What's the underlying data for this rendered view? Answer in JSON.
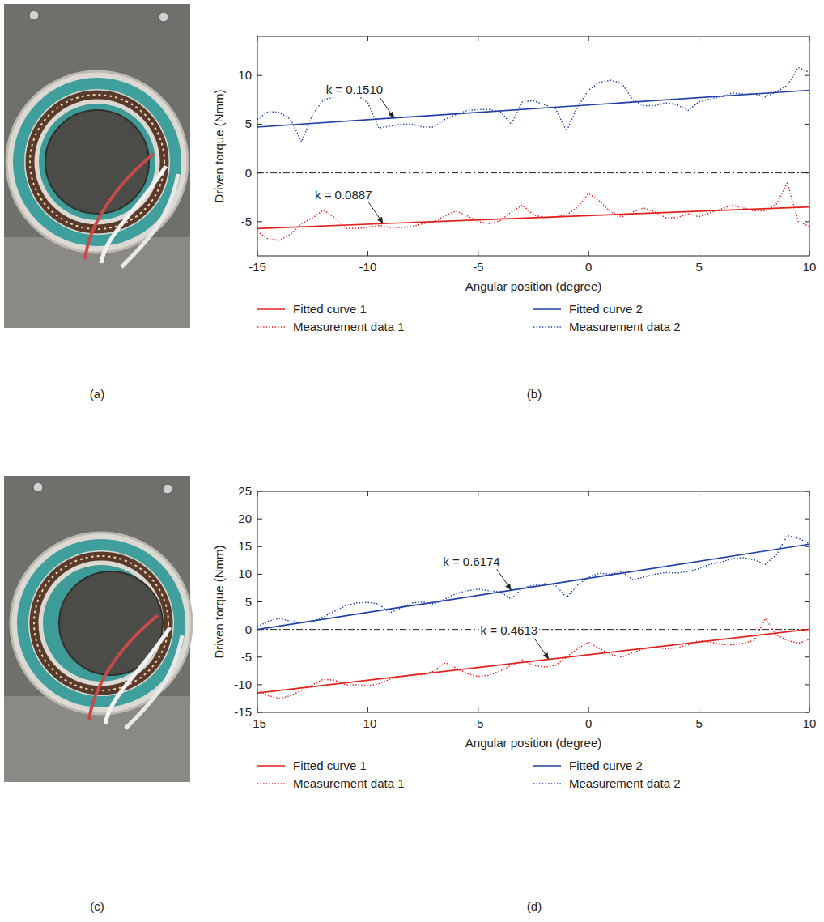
{
  "panel_labels": [
    "(a)",
    "(b)",
    "(c)",
    "(d)"
  ],
  "chart_data": [
    {
      "type": "line",
      "x_label": "Angular position (degree)",
      "y_label": "Driven torque (Nmm)",
      "xlim": [
        -15,
        10
      ],
      "xticks": [
        -15,
        -10,
        -5,
        0,
        5,
        10
      ],
      "ylim": [
        -8.5,
        14
      ],
      "yticks": [
        -5,
        0,
        5,
        10
      ],
      "grid": false,
      "legend": "bottom",
      "hline": 0,
      "x": [
        -15,
        -14.5,
        -14,
        -13.5,
        -13,
        -12.5,
        -12,
        -11.5,
        -11,
        -10.5,
        -10,
        -9.5,
        -9,
        -8.5,
        -8,
        -7.5,
        -7,
        -6.5,
        -6,
        -5.5,
        -5,
        -4.5,
        -4,
        -3.5,
        -3,
        -2.5,
        -2,
        -1.5,
        -1,
        -0.5,
        0,
        0.5,
        1,
        1.5,
        2,
        2.5,
        3,
        3.5,
        4,
        4.5,
        5,
        5.5,
        6,
        6.5,
        7,
        7.5,
        8,
        8.5,
        9,
        9.5,
        10
      ],
      "series": [
        {
          "name": "Fitted curve 1",
          "color": "#e3211c",
          "line_style": "solid",
          "x": [
            -15,
            10
          ],
          "values": [
            -5.7,
            -3.48
          ]
        },
        {
          "name": "Fitted curve 2",
          "color": "#1f3fa6",
          "line_style": "solid",
          "x": [
            -15,
            10
          ],
          "values": [
            4.7,
            8.48
          ]
        },
        {
          "name": "Measurement data 1",
          "color": "#e3211c",
          "line_style": "dotted",
          "values": [
            -6.0,
            -6.8,
            -6.9,
            -6.3,
            -5.2,
            -4.6,
            -3.8,
            -4.6,
            -5.7,
            -5.7,
            -5.6,
            -5.4,
            -5.6,
            -5.6,
            -5.5,
            -5.2,
            -5.0,
            -4.4,
            -3.9,
            -4.4,
            -5.0,
            -5.2,
            -4.9,
            -4.0,
            -3.3,
            -4.3,
            -4.6,
            -4.5,
            -4.3,
            -3.5,
            -2.1,
            -2.9,
            -4.0,
            -4.5,
            -4.0,
            -3.6,
            -4.0,
            -4.6,
            -4.6,
            -4.2,
            -4.5,
            -4.1,
            -3.7,
            -3.3,
            -3.6,
            -3.9,
            -3.9,
            -3.2,
            -1.0,
            -5.0,
            -5.5
          ]
        },
        {
          "name": "Measurement data 2",
          "color": "#1f3fa6",
          "line_style": "dotted",
          "values": [
            5.5,
            6.3,
            6.2,
            5.5,
            3.2,
            6.0,
            7.5,
            7.8,
            7.9,
            8.0,
            7.2,
            4.6,
            4.8,
            5.0,
            5.0,
            4.7,
            4.7,
            5.5,
            6.0,
            6.4,
            6.5,
            6.5,
            6.3,
            5.0,
            7.3,
            7.4,
            7.0,
            6.6,
            4.3,
            6.8,
            8.5,
            9.3,
            9.5,
            9.2,
            7.5,
            6.9,
            6.9,
            7.2,
            7.0,
            6.4,
            7.3,
            7.6,
            7.8,
            8.2,
            8.1,
            8.1,
            7.8,
            8.3,
            9.0,
            10.8,
            10.3
          ]
        }
      ],
      "annotations": [
        {
          "text": "k = 0.1510",
          "x": -8.8,
          "y": 5.6
        },
        {
          "text": "k = 0.0887",
          "x": -9.3,
          "y": -5.2
        }
      ]
    },
    {
      "type": "line",
      "x_label": "Angular position (degree)",
      "y_label": "Driven torque (Nmm)",
      "xlim": [
        -15,
        10
      ],
      "xticks": [
        -15,
        -10,
        -5,
        0,
        5,
        10
      ],
      "ylim": [
        -15,
        25
      ],
      "yticks": [
        -15,
        -10,
        -5,
        0,
        5,
        10,
        15,
        20,
        25
      ],
      "grid": false,
      "legend": "bottom",
      "hline": 0,
      "x": [
        -15,
        -14.5,
        -14,
        -13.5,
        -13,
        -12.5,
        -12,
        -11.5,
        -11,
        -10.5,
        -10,
        -9.5,
        -9,
        -8.5,
        -8,
        -7.5,
        -7,
        -6.5,
        -6,
        -5.5,
        -5,
        -4.5,
        -4,
        -3.5,
        -3,
        -2.5,
        -2,
        -1.5,
        -1,
        -0.5,
        0,
        0.5,
        1,
        1.5,
        2,
        2.5,
        3,
        3.5,
        4,
        4.5,
        5,
        5.5,
        6,
        6.5,
        7,
        7.5,
        8,
        8.5,
        9,
        9.5,
        10
      ],
      "series": [
        {
          "name": "Fitted curve 1",
          "color": "#e3211c",
          "line_style": "solid",
          "x": [
            -15,
            10
          ],
          "values": [
            -11.5,
            0.03
          ]
        },
        {
          "name": "Fitted curve 2",
          "color": "#1f3fa6",
          "line_style": "solid",
          "x": [
            -15,
            10
          ],
          "values": [
            0.0,
            15.44
          ]
        },
        {
          "name": "Measurement data 1",
          "color": "#e3211c",
          "line_style": "dotted",
          "values": [
            -11.0,
            -12.0,
            -12.5,
            -12.0,
            -11.0,
            -10.0,
            -9.0,
            -9.2,
            -10.0,
            -10.0,
            -10.2,
            -9.8,
            -9.0,
            -8.6,
            -8.2,
            -8.2,
            -7.5,
            -6.0,
            -7.0,
            -8.0,
            -8.5,
            -8.3,
            -7.5,
            -6.5,
            -5.5,
            -6.5,
            -6.8,
            -6.5,
            -5.0,
            -3.5,
            -2.3,
            -3.5,
            -4.5,
            -5.0,
            -4.2,
            -3.5,
            -3.2,
            -3.5,
            -3.3,
            -2.8,
            -2.0,
            -2.3,
            -2.7,
            -2.8,
            -2.5,
            -2.0,
            2.0,
            -1.0,
            -2.0,
            -2.5,
            -1.8
          ]
        },
        {
          "name": "Measurement data 2",
          "color": "#1f3fa6",
          "line_style": "dotted",
          "values": [
            0.5,
            1.5,
            2.0,
            1.5,
            1.2,
            1.5,
            2.3,
            3.3,
            4.3,
            4.8,
            4.9,
            4.6,
            3.0,
            3.9,
            4.8,
            5.0,
            4.6,
            5.5,
            6.5,
            7.0,
            7.3,
            7.0,
            6.8,
            5.5,
            7.5,
            8.0,
            8.3,
            8.0,
            5.8,
            8.0,
            9.5,
            10.2,
            10.0,
            10.5,
            9.0,
            9.5,
            10.0,
            10.3,
            10.2,
            10.5,
            11.0,
            11.8,
            12.2,
            12.8,
            13.0,
            12.6,
            11.8,
            13.5,
            17.0,
            16.5,
            15.5
          ]
        }
      ],
      "annotations": [
        {
          "text": "k = 0.6174",
          "x": -3.5,
          "y": 7.1
        },
        {
          "text": "k = 0.4613",
          "x": -1.8,
          "y": -5.4
        }
      ]
    }
  ]
}
